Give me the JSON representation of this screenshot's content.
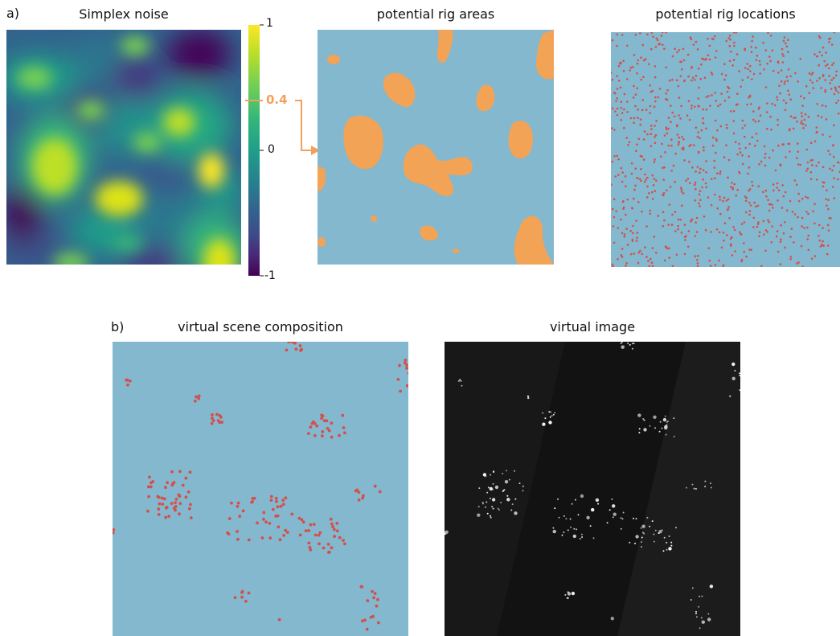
{
  "panel_a": {
    "letter": "a)",
    "titles": {
      "noise": "Simplex noise",
      "areas": "potential rig areas",
      "locations": "potential rig locations"
    },
    "colorbar": {
      "ticks": [
        "1",
        "0",
        "-1"
      ],
      "threshold_label": "0.4",
      "threshold_value": 0.4,
      "colormap": "viridis"
    }
  },
  "panel_b": {
    "letter": "b)",
    "titles": {
      "composition": "virtual scene composition",
      "image": "virtual image"
    }
  },
  "colors": {
    "background_blue": "#84b8cf",
    "area_orange": "#f2a356",
    "rig_red": "#d2514b",
    "image_dark": "#141414",
    "threshold_orange": "#f4a05a"
  }
}
